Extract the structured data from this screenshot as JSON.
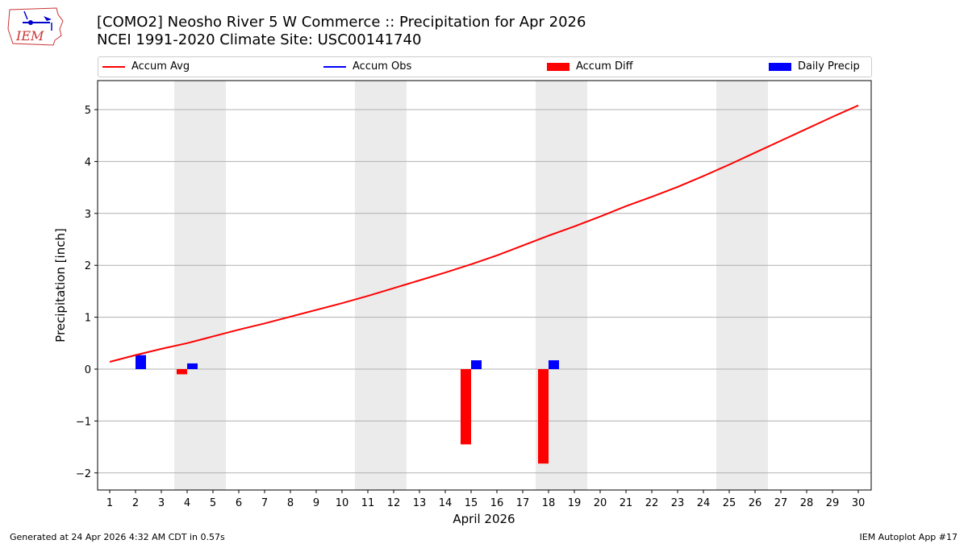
{
  "header": {
    "title_line1": "[COMO2] Neosho River 5 W Commerce :: Precipitation for Apr 2026",
    "title_line2": "NCEI 1991-2020 Climate Site: USC00141740",
    "logo_text": "IEM"
  },
  "legend": {
    "items": [
      {
        "label": "Accum Avg",
        "color": "#ff0000",
        "kind": "line"
      },
      {
        "label": "Accum Obs",
        "color": "#0000ff",
        "kind": "line"
      },
      {
        "label": "Accum Diff",
        "color": "#ff0000",
        "kind": "patch"
      },
      {
        "label": "Daily Precip",
        "color": "#0000ff",
        "kind": "patch"
      }
    ]
  },
  "footer": {
    "left": "Generated at 24 Apr 2026 4:32 AM CDT in 0.57s",
    "right": "IEM Autoplot App #17"
  },
  "chart_data": {
    "type": "bar",
    "title": "[COMO2] Neosho River 5 W Commerce :: Precipitation for Apr 2026",
    "subtitle": "NCEI 1991-2020 Climate Site: USC00141740",
    "xlabel": "April 2026",
    "ylabel": "Precipitation [inch]",
    "ylim": [
      -2.33,
      5.57
    ],
    "yticks": [
      -2,
      -1,
      0,
      1,
      2,
      3,
      4,
      5
    ],
    "ytick_labels": [
      "−2",
      "−1",
      "0",
      "1",
      "2",
      "3",
      "4",
      "5"
    ],
    "x": [
      1,
      2,
      3,
      4,
      5,
      6,
      7,
      8,
      9,
      10,
      11,
      12,
      13,
      14,
      15,
      16,
      17,
      18,
      19,
      20,
      21,
      22,
      23,
      24,
      25,
      26,
      27,
      28,
      29,
      30
    ],
    "grid": "horizontal",
    "legend_position": "top",
    "weekend_shading": [
      [
        4,
        5
      ],
      [
        11,
        12
      ],
      [
        18,
        19
      ],
      [
        25,
        26
      ]
    ],
    "series": [
      {
        "name": "Accum Avg",
        "type": "line",
        "color": "#ff0000",
        "values": [
          0.14,
          0.27,
          0.39,
          0.5,
          0.63,
          0.76,
          0.88,
          1.01,
          1.14,
          1.27,
          1.41,
          1.56,
          1.71,
          1.86,
          2.02,
          2.19,
          2.38,
          2.57,
          2.75,
          2.94,
          3.14,
          3.32,
          3.51,
          3.72,
          3.94,
          4.17,
          4.4,
          4.63,
          4.86,
          5.08
        ]
      },
      {
        "name": "Accum Obs",
        "type": "line",
        "color": "#0000ff",
        "values": []
      },
      {
        "name": "Accum Diff",
        "type": "bar",
        "color": "#ff0000",
        "points": [
          {
            "x": 4,
            "value": -0.1
          },
          {
            "x": 15,
            "value": -1.45
          },
          {
            "x": 18,
            "value": -1.82
          }
        ]
      },
      {
        "name": "Daily Precip",
        "type": "bar",
        "color": "#0000ff",
        "points": [
          {
            "x": 2,
            "value": 0.27
          },
          {
            "x": 4,
            "value": 0.11
          },
          {
            "x": 15,
            "value": 0.17
          },
          {
            "x": 18,
            "value": 0.17
          }
        ]
      }
    ]
  }
}
